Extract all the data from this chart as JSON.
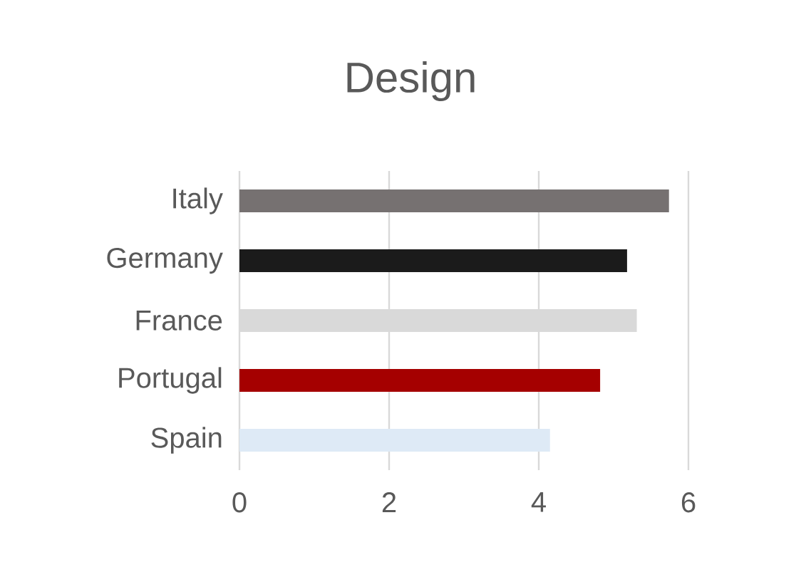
{
  "chart_data": {
    "type": "bar",
    "orientation": "horizontal",
    "title": "Design",
    "categories": [
      "Italy",
      "Germany",
      "France",
      "Portugal",
      "Spain"
    ],
    "values": [
      5.74,
      5.18,
      5.31,
      4.82,
      4.15
    ],
    "colors": [
      "#767171",
      "#1b1b1b",
      "#d9d9d9",
      "#a50000",
      "#deeaf6"
    ],
    "xlim": [
      0,
      6
    ],
    "xticks": [
      0,
      2,
      4,
      6
    ],
    "grid": "x"
  }
}
